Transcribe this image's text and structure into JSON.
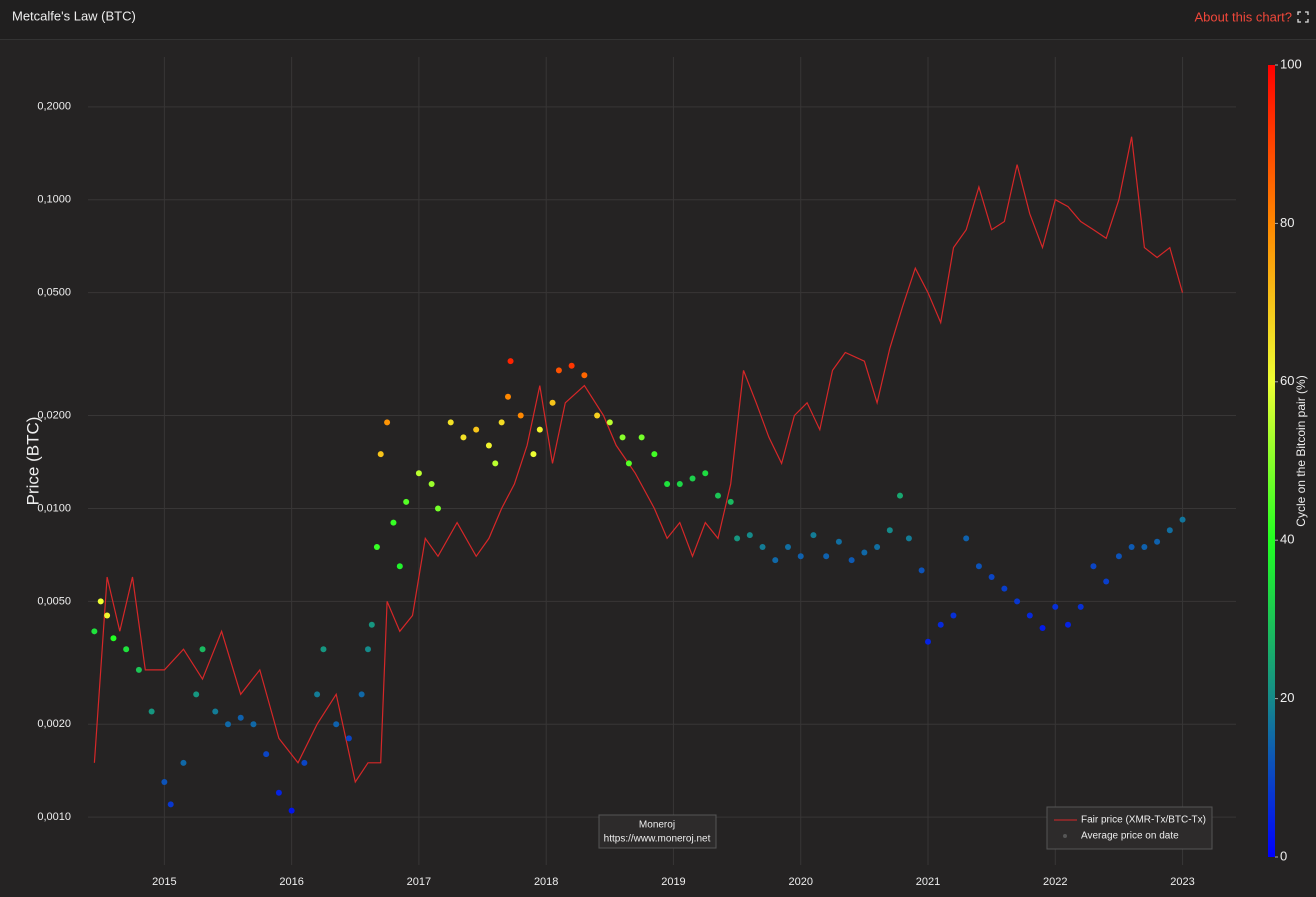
{
  "header": {
    "title": "Metcalfe's Law (BTC)",
    "link": "About this chart?"
  },
  "chart_data": {
    "type": "scatter",
    "y_label": "Price (BTC)",
    "log_y": true,
    "grid": true,
    "xlim": [
      2014.4,
      2023.42
    ],
    "xticks": [
      2015,
      2016,
      2017,
      2018,
      2019,
      2020,
      2021,
      2022,
      2023
    ],
    "ylim": [
      0.0007,
      0.29
    ],
    "yticks": [
      {
        "value": 0.001,
        "label": "0,0010"
      },
      {
        "value": 0.002,
        "label": "0,0020"
      },
      {
        "value": 0.005,
        "label": "0,0050"
      },
      {
        "value": 0.01,
        "label": "0,0100"
      },
      {
        "value": 0.02,
        "label": "0,0200"
      },
      {
        "value": 0.05,
        "label": "0,0500"
      },
      {
        "value": 0.1,
        "label": "0,1000"
      },
      {
        "value": 0.2,
        "label": "0,2000"
      }
    ],
    "legend": "bottom-right",
    "series": [
      {
        "name": "Fair price (XMR-Tx/BTC-Tx)",
        "type": "line",
        "color": "#d62728",
        "x": [
          2014.45,
          2014.55,
          2014.65,
          2014.75,
          2014.85,
          2015.0,
          2015.15,
          2015.3,
          2015.45,
          2015.6,
          2015.75,
          2015.9,
          2016.05,
          2016.2,
          2016.35,
          2016.5,
          2016.6,
          2016.7,
          2016.75,
          2016.85,
          2016.95,
          2017.05,
          2017.15,
          2017.3,
          2017.45,
          2017.55,
          2017.65,
          2017.75,
          2017.85,
          2017.95,
          2018.05,
          2018.15,
          2018.3,
          2018.45,
          2018.55,
          2018.7,
          2018.85,
          2018.95,
          2019.05,
          2019.15,
          2019.25,
          2019.35,
          2019.45,
          2019.55,
          2019.65,
          2019.75,
          2019.85,
          2019.95,
          2020.05,
          2020.15,
          2020.25,
          2020.35,
          2020.5,
          2020.6,
          2020.7,
          2020.8,
          2020.9,
          2021.0,
          2021.1,
          2021.2,
          2021.3,
          2021.4,
          2021.5,
          2021.6,
          2021.7,
          2021.8,
          2021.9,
          2022.0,
          2022.1,
          2022.2,
          2022.3,
          2022.4,
          2022.5,
          2022.6,
          2022.7,
          2022.8,
          2022.9,
          2023.0
        ],
        "values": [
          0.0015,
          0.006,
          0.004,
          0.006,
          0.003,
          0.003,
          0.0035,
          0.0028,
          0.004,
          0.0025,
          0.003,
          0.0018,
          0.0015,
          0.002,
          0.0025,
          0.0013,
          0.0015,
          0.0015,
          0.005,
          0.004,
          0.0045,
          0.008,
          0.007,
          0.009,
          0.007,
          0.008,
          0.01,
          0.012,
          0.016,
          0.025,
          0.014,
          0.022,
          0.025,
          0.02,
          0.016,
          0.013,
          0.01,
          0.008,
          0.009,
          0.007,
          0.009,
          0.008,
          0.012,
          0.028,
          0.022,
          0.017,
          0.014,
          0.02,
          0.022,
          0.018,
          0.028,
          0.032,
          0.03,
          0.022,
          0.033,
          0.045,
          0.06,
          0.05,
          0.04,
          0.07,
          0.08,
          0.11,
          0.08,
          0.085,
          0.13,
          0.09,
          0.07,
          0.1,
          0.095,
          0.085,
          0.08,
          0.075,
          0.1,
          0.16,
          0.07,
          0.065,
          0.07,
          0.05
        ]
      },
      {
        "name": "Average price on date",
        "type": "scatter",
        "color": "#555555",
        "x": [
          2014.45,
          2014.5,
          2014.55,
          2014.6,
          2014.7,
          2014.8,
          2014.9,
          2015.0,
          2015.05,
          2015.15,
          2015.25,
          2015.3,
          2015.4,
          2015.5,
          2015.6,
          2015.7,
          2015.8,
          2015.9,
          2016.0,
          2016.1,
          2016.2,
          2016.25,
          2016.35,
          2016.45,
          2016.55,
          2016.6,
          2016.63,
          2016.67,
          2016.7,
          2016.75,
          2016.8,
          2016.85,
          2016.9,
          2017.0,
          2017.1,
          2017.15,
          2017.25,
          2017.35,
          2017.45,
          2017.55,
          2017.6,
          2017.65,
          2017.7,
          2017.72,
          2017.8,
          2017.9,
          2017.95,
          2018.05,
          2018.1,
          2018.2,
          2018.3,
          2018.4,
          2018.5,
          2018.6,
          2018.65,
          2018.75,
          2018.85,
          2018.95,
          2019.05,
          2019.15,
          2019.25,
          2019.35,
          2019.45,
          2019.5,
          2019.6,
          2019.7,
          2019.8,
          2019.9,
          2020.0,
          2020.1,
          2020.2,
          2020.3,
          2020.4,
          2020.5,
          2020.6,
          2020.7,
          2020.78,
          2020.85,
          2020.95,
          2021.0,
          2021.1,
          2021.2,
          2021.3,
          2021.4,
          2021.5,
          2021.6,
          2021.7,
          2021.8,
          2021.9,
          2022.0,
          2022.1,
          2022.2,
          2022.3,
          2022.4,
          2022.5,
          2022.6,
          2022.7,
          2022.8,
          2022.9,
          2023.0
        ],
        "values": [
          0.004,
          0.005,
          0.0045,
          0.0038,
          0.0035,
          0.003,
          0.0022,
          0.0013,
          0.0011,
          0.0015,
          0.0025,
          0.0035,
          0.0022,
          0.002,
          0.0021,
          0.002,
          0.0016,
          0.0012,
          0.00105,
          0.0015,
          0.0025,
          0.0035,
          0.002,
          0.0018,
          0.0025,
          0.0035,
          0.0042,
          0.0075,
          0.015,
          0.019,
          0.009,
          0.0065,
          0.0105,
          0.013,
          0.012,
          0.01,
          0.019,
          0.017,
          0.018,
          0.016,
          0.014,
          0.019,
          0.023,
          0.03,
          0.02,
          0.015,
          0.018,
          0.022,
          0.028,
          0.029,
          0.027,
          0.02,
          0.019,
          0.017,
          0.014,
          0.017,
          0.015,
          0.012,
          0.012,
          0.0125,
          0.013,
          0.011,
          0.0105,
          0.008,
          0.0082,
          0.0075,
          0.0068,
          0.0075,
          0.007,
          0.0082,
          0.007,
          0.0078,
          0.0068,
          0.0072,
          0.0075,
          0.0085,
          0.011,
          0.008,
          0.0063,
          0.0037,
          0.0042,
          0.0045,
          0.008,
          0.0065,
          0.006,
          0.0055,
          0.005,
          0.0045,
          0.0041,
          0.0048,
          0.0042,
          0.0048,
          0.0065,
          0.0058,
          0.007,
          0.0075,
          0.0075,
          0.0078,
          0.0085,
          0.0092
        ],
        "cycle": [
          35,
          60,
          62,
          40,
          35,
          30,
          22,
          12,
          8,
          15,
          22,
          28,
          18,
          15,
          14,
          15,
          10,
          5,
          3,
          10,
          18,
          22,
          14,
          10,
          15,
          20,
          22,
          42,
          70,
          78,
          42,
          38,
          45,
          55,
          52,
          48,
          65,
          65,
          70,
          62,
          55,
          66,
          80,
          95,
          80,
          60,
          62,
          70,
          88,
          92,
          85,
          68,
          55,
          50,
          45,
          48,
          43,
          35,
          33,
          32,
          34,
          30,
          28,
          22,
          20,
          18,
          15,
          16,
          14,
          18,
          14,
          16,
          13,
          15,
          16,
          20,
          25,
          18,
          12,
          5,
          6,
          7,
          14,
          12,
          10,
          9,
          8,
          6,
          4,
          7,
          5,
          7,
          10,
          9,
          12,
          13,
          14,
          14,
          16,
          17
        ]
      }
    ],
    "colorbar": {
      "title": "Cycle on the Bitcoin pair (%)",
      "lim": [
        0,
        100
      ],
      "ticks": [
        0,
        20,
        40,
        60,
        80,
        100
      ],
      "colorscale": [
        [
          0,
          "#0000ff"
        ],
        [
          20,
          "#158a8a"
        ],
        [
          40,
          "#22ff22"
        ],
        [
          60,
          "#eeff33"
        ],
        [
          80,
          "#ff8800"
        ],
        [
          100,
          "#ff0000"
        ]
      ]
    },
    "watermark": {
      "name": "Moneroj",
      "url": "https://www.moneroj.net"
    }
  }
}
